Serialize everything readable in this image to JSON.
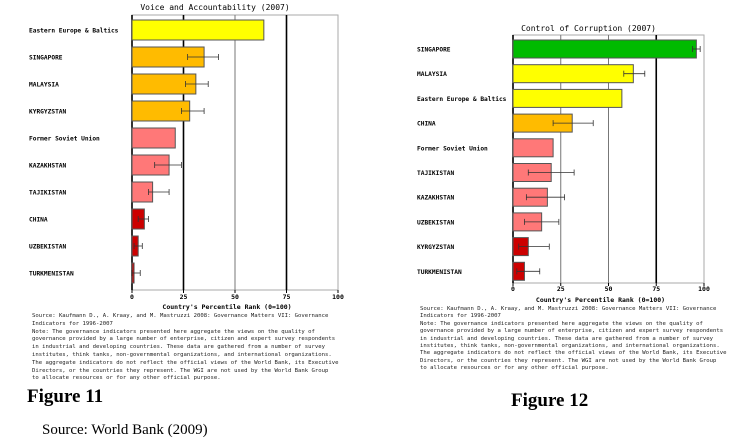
{
  "chart_data": [
    {
      "type": "bar",
      "title": "Voice and Accountability (2007)",
      "xlabel": "Country's Percentile Rank (0=100)",
      "xlim": [
        0,
        100
      ],
      "ticks": [
        "0",
        "25",
        "50",
        "75",
        "100"
      ],
      "categories": [
        "Eastern Europe & Baltics",
        "SINGAPORE",
        "MALAYSIA",
        "KYRGYZSTAN",
        "Former Soviet Union",
        "KAZAKHSTAN",
        "TAJIKISTAN",
        "CHINA",
        "UZBEKISTAN",
        "TURKMENISTAN"
      ],
      "values": [
        64,
        35,
        31,
        28,
        21,
        18,
        10,
        6,
        3,
        1
      ],
      "error_low": [
        null,
        27,
        26,
        24,
        null,
        11,
        8,
        3,
        1,
        0
      ],
      "error_high": [
        null,
        42,
        37,
        35,
        null,
        24,
        18,
        8,
        5,
        4
      ],
      "colors": [
        "#ffff00",
        "#ffbb00",
        "#ffbb00",
        "#ffbb00",
        "#ff7878",
        "#ff7878",
        "#ff7878",
        "#cc0000",
        "#cc0000",
        "#cc0000"
      ]
    },
    {
      "type": "bar",
      "title": "Control of Corruption (2007)",
      "xlabel": "Country's Percentile Rank (0=100)",
      "xlim": [
        0,
        100
      ],
      "ticks": [
        "0",
        "25",
        "50",
        "75",
        "100"
      ],
      "categories": [
        "SINGAPORE",
        "MALAYSIA",
        "Eastern Europe & Baltics",
        "CHINA",
        "Former Soviet Union",
        "TAJIKISTAN",
        "KAZAKHSTAN",
        "UZBEKISTAN",
        "KYRGYZSTAN",
        "TURKMENISTAN"
      ],
      "values": [
        96,
        63,
        57,
        31,
        21,
        20,
        18,
        15,
        8,
        6
      ],
      "error_low": [
        94,
        58,
        null,
        21,
        null,
        8,
        7,
        6,
        3,
        2
      ],
      "error_high": [
        98,
        69,
        null,
        42,
        null,
        32,
        27,
        24,
        19,
        14
      ],
      "colors": [
        "#00bb00",
        "#ffff00",
        "#ffff00",
        "#ffbb00",
        "#ff7878",
        "#ff7878",
        "#ff7878",
        "#ff7878",
        "#cc0000",
        "#cc0000"
      ]
    }
  ],
  "notes": [
    [
      "Source: Kaufmann D., A. Kraay, and M. Mastruzzi 2008: Governance Matters VII: Governance",
      "Indicators for 1996-2007",
      "Note: The governance indicators presented here aggregate the views on the quality of",
      "governance provided by a large number of enterprise, citizen and expert survey respondents",
      "in industrial and developing countries. These data are gathered from a number of survey",
      "institutes, think tanks, non-governmental organizations, and international organizations.",
      "The aggregate indicators do not reflect the official views of the World Bank, its Executive",
      "Directors, or the countries they represent. The WGI are not used by the World Bank Group",
      "to allocate resources or for any other official purpose."
    ],
    [
      "Source: Kaufmann D., A. Kraay, and M. Mastruzzi 2008: Governance Matters VII: Governance",
      "Indicators for 1996-2007",
      "Note: The governance indicators presented here aggregate the views on the quality of",
      "governance provided by a large number of enterprise, citizen and expert survey respondents",
      "in industrial and developing countries. These data are gathered from a number of survey",
      "institutes, think tanks, non-governmental organizations, and international organizations.",
      "The aggregate indicators do not reflect the official views of the World Bank, its Executive",
      "Directors, or the countries they represent. The WGI are not used by the World Bank Group",
      "to allocate resources or for any other official purpose."
    ]
  ],
  "figures": {
    "fig11": "Figure 11",
    "fig12": "Figure 12",
    "source": "Source: World Bank (2009)"
  }
}
